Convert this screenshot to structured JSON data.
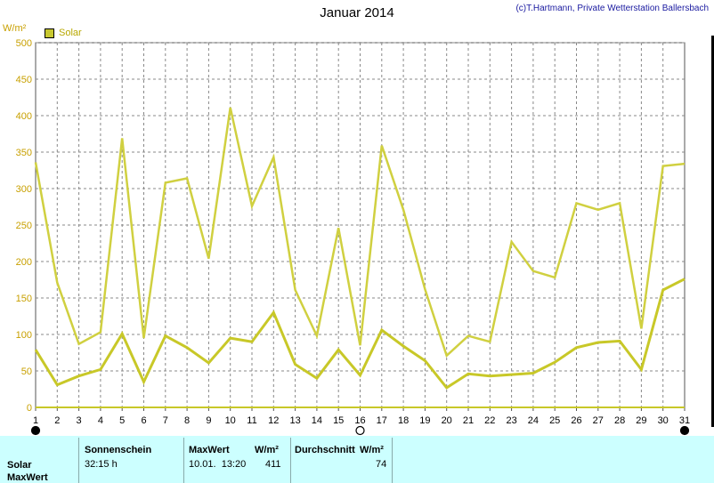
{
  "header": {
    "title": "Januar 2014",
    "credit": "(c)T.Hartmann, Private Wetterstation Ballersbach",
    "unit": "W/m²"
  },
  "legend": {
    "label": "Solar",
    "color": "#c8c830"
  },
  "chart_data": {
    "type": "line",
    "title": "Januar 2014",
    "ylabel": "W/m²",
    "ylim": [
      0,
      500
    ],
    "yticks": [
      0,
      50,
      100,
      150,
      200,
      250,
      300,
      350,
      400,
      450,
      500
    ],
    "xlim": [
      1,
      31
    ],
    "x": [
      1,
      2,
      3,
      4,
      5,
      6,
      7,
      8,
      9,
      10,
      11,
      12,
      13,
      14,
      15,
      16,
      17,
      18,
      19,
      20,
      21,
      22,
      23,
      24,
      25,
      26,
      27,
      28,
      29,
      30,
      31
    ],
    "grid": true,
    "legend_position": "top-left",
    "series": [
      {
        "name": "Solar",
        "label": "max",
        "color": "#d0d040",
        "values": [
          336,
          171,
          87,
          103,
          369,
          95,
          308,
          314,
          204,
          411,
          276,
          343,
          161,
          98,
          246,
          85,
          359,
          271,
          162,
          71,
          98,
          90,
          227,
          187,
          178,
          280,
          271,
          280,
          108,
          331,
          334
        ]
      },
      {
        "name": "Solar",
        "label": "mean",
        "color": "#c8c828",
        "values": [
          79,
          31,
          43,
          52,
          101,
          35,
          98,
          82,
          61,
          95,
          90,
          130,
          59,
          40,
          79,
          44,
          106,
          84,
          64,
          27,
          46,
          43,
          45,
          47,
          62,
          82,
          89,
          91,
          52,
          161,
          176
        ]
      }
    ],
    "moon_phases": [
      {
        "day": 1,
        "phase": "new"
      },
      {
        "day": 16,
        "phase": "full"
      },
      {
        "day": 31,
        "phase": "new"
      }
    ]
  },
  "footer": {
    "row_label_solar": "Solar",
    "row_label_maxwert": "MaxWert",
    "sunshine_head": "Sonnenschein",
    "sunshine_value": "32:15 h",
    "maxwert_head": "MaxWert",
    "maxwert_unit": "W/m²",
    "maxwert_time": "10.01.  13:20",
    "maxwert_value": "411",
    "avg_head": "Durchschnitt",
    "avg_unit": "W/m²",
    "avg_value": "74"
  }
}
